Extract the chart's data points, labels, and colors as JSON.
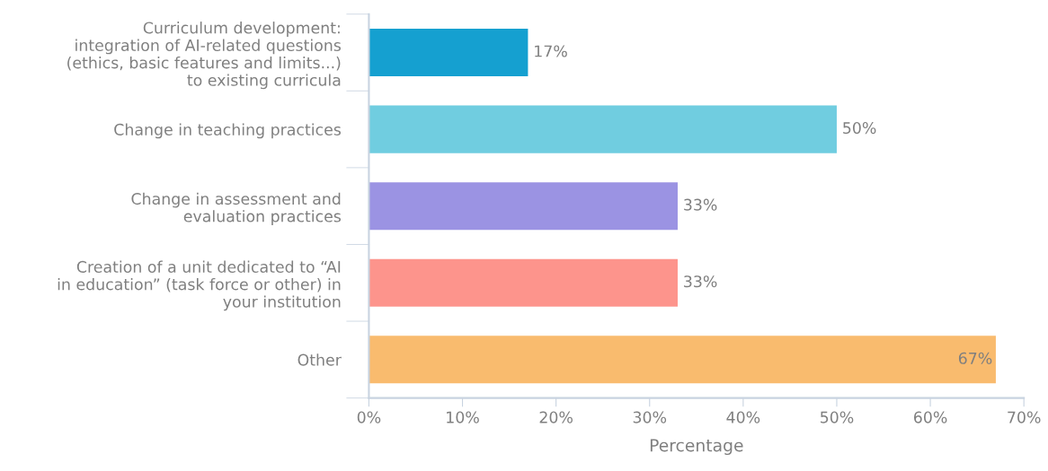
{
  "chart_data": {
    "type": "bar",
    "orientation": "horizontal",
    "xlabel": "Percentage",
    "categories": [
      "Curriculum development:\nintegration of AI-related questions\n(ethics, basic features and limits...)\nto existing curricula",
      "Change in teaching practices",
      "Change in assessment and\nevaluation practices",
      "Creation of a unit dedicated to “AI\nin education” (task force or other) in\nyour institution",
      "Other"
    ],
    "values": [
      17,
      50,
      33,
      33,
      67
    ],
    "colors": [
      "#15a0d0",
      "#70cde0",
      "#9b93e3",
      "#fd948c",
      "#f9bb6e"
    ],
    "value_labels": [
      "17%",
      "50%",
      "33%",
      "33%",
      "67%"
    ],
    "xlim": [
      0,
      70
    ],
    "xticks": [
      {
        "value": 0,
        "label": "0%"
      },
      {
        "value": 10,
        "label": "10%"
      },
      {
        "value": 20,
        "label": "20%"
      },
      {
        "value": 30,
        "label": "30%"
      },
      {
        "value": 40,
        "label": "40%"
      },
      {
        "value": 50,
        "label": "50%"
      },
      {
        "value": 60,
        "label": "60%"
      },
      {
        "value": 70,
        "label": "70%"
      }
    ],
    "grid": false,
    "legend": false
  }
}
